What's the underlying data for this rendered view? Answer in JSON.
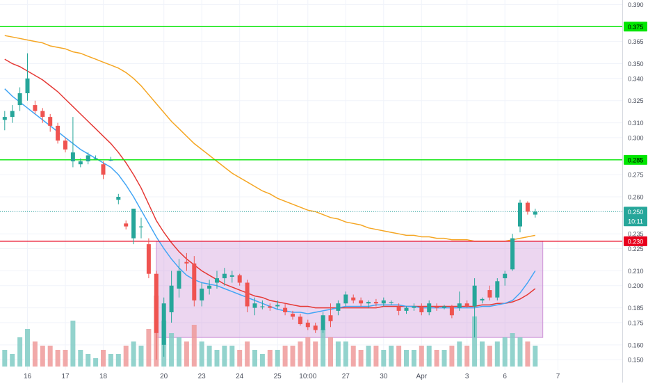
{
  "chart_data": {
    "type": "candlestick",
    "ylim": [
      0.143,
      0.393
    ],
    "y_ticks": [
      0.15,
      0.16,
      0.175,
      0.185,
      0.2,
      0.21,
      0.225,
      0.235,
      0.25,
      0.26,
      0.275,
      0.285,
      0.3,
      0.31,
      0.325,
      0.34,
      0.35,
      0.365,
      0.375,
      0.39
    ],
    "y_tick_labels": [
      "0.150",
      "0.160",
      "0.175",
      "0.185",
      "0.200",
      "0.210",
      "0.225",
      "0.235",
      "0.250",
      "0.260",
      "0.275",
      "0.285",
      "0.300",
      "0.310",
      "0.325",
      "0.340",
      "0.350",
      "0.365",
      "0.375",
      "0.390"
    ],
    "x_ticks": [
      {
        "label": "16",
        "index": 3
      },
      {
        "label": "17",
        "index": 8
      },
      {
        "label": "18",
        "index": 13
      },
      {
        "label": "20",
        "index": 21
      },
      {
        "label": "23",
        "index": 26
      },
      {
        "label": "24",
        "index": 31
      },
      {
        "label": "25",
        "index": 36
      },
      {
        "label": "10:00",
        "index": 40
      },
      {
        "label": "27",
        "index": 45
      },
      {
        "label": "30",
        "index": 50
      },
      {
        "label": "Apr",
        "index": 55
      },
      {
        "label": "3",
        "index": 61
      },
      {
        "label": "6",
        "index": 66
      },
      {
        "label": "7",
        "index": 73
      }
    ],
    "candles": [
      [
        0.312,
        0.318,
        0.305,
        0.314
      ],
      [
        0.314,
        0.322,
        0.31,
        0.318
      ],
      [
        0.322,
        0.334,
        0.318,
        0.33
      ],
      [
        0.33,
        0.357,
        0.325,
        0.34
      ],
      [
        0.322,
        0.325,
        0.316,
        0.318
      ],
      [
        0.318,
        0.32,
        0.31,
        0.314
      ],
      [
        0.314,
        0.316,
        0.304,
        0.308
      ],
      [
        0.308,
        0.31,
        0.296,
        0.298
      ],
      [
        0.298,
        0.3,
        0.29,
        0.292
      ],
      [
        0.284,
        0.314,
        0.28,
        0.29
      ],
      [
        0.282,
        0.286,
        0.28,
        0.284
      ],
      [
        0.284,
        0.29,
        0.282,
        0.288
      ],
      [
        0.286,
        0.288,
        0.285,
        0.286
      ],
      [
        0.282,
        0.284,
        0.272,
        0.275
      ],
      [
        0.285,
        0.287,
        0.284,
        0.285
      ],
      [
        0.258,
        0.262,
        0.255,
        0.26
      ],
      [
        0.242,
        0.244,
        0.238,
        0.24
      ],
      [
        0.232,
        0.252,
        0.228,
        0.252
      ],
      [
        0.24,
        0.246,
        0.232,
        0.24
      ],
      [
        0.228,
        0.232,
        0.205,
        0.208
      ],
      [
        0.208,
        0.21,
        0.15,
        0.168
      ],
      [
        0.16,
        0.192,
        0.152,
        0.188
      ],
      [
        0.182,
        0.21,
        0.175,
        0.2
      ],
      [
        0.198,
        0.218,
        0.192,
        0.21
      ],
      [
        0.216,
        0.222,
        0.21,
        0.215
      ],
      [
        0.215,
        0.22,
        0.186,
        0.19
      ],
      [
        0.19,
        0.202,
        0.186,
        0.198
      ],
      [
        0.198,
        0.204,
        0.194,
        0.2
      ],
      [
        0.202,
        0.21,
        0.198,
        0.205
      ],
      [
        0.205,
        0.212,
        0.2,
        0.208
      ],
      [
        0.206,
        0.21,
        0.202,
        0.207
      ],
      [
        0.207,
        0.208,
        0.2,
        0.202
      ],
      [
        0.202,
        0.204,
        0.182,
        0.186
      ],
      [
        0.185,
        0.192,
        0.18,
        0.188
      ],
      [
        0.186,
        0.19,
        0.184,
        0.186
      ],
      [
        0.186,
        0.188,
        0.183,
        0.185
      ],
      [
        0.186,
        0.19,
        0.184,
        0.187
      ],
      [
        0.185,
        0.188,
        0.18,
        0.182
      ],
      [
        0.181,
        0.183,
        0.177,
        0.179
      ],
      [
        0.179,
        0.181,
        0.173,
        0.174
      ],
      [
        0.175,
        0.177,
        0.17,
        0.172
      ],
      [
        0.173,
        0.175,
        0.168,
        0.17
      ],
      [
        0.17,
        0.182,
        0.168,
        0.18
      ],
      [
        0.18,
        0.188,
        0.172,
        0.176
      ],
      [
        0.183,
        0.19,
        0.18,
        0.188
      ],
      [
        0.188,
        0.196,
        0.186,
        0.194
      ],
      [
        0.192,
        0.194,
        0.188,
        0.19
      ],
      [
        0.19,
        0.192,
        0.186,
        0.188
      ],
      [
        0.188,
        0.19,
        0.185,
        0.189
      ],
      [
        0.189,
        0.191,
        0.186,
        0.188
      ],
      [
        0.188,
        0.192,
        0.186,
        0.19
      ],
      [
        0.189,
        0.19,
        0.187,
        0.189
      ],
      [
        0.186,
        0.188,
        0.18,
        0.183
      ],
      [
        0.183,
        0.186,
        0.181,
        0.185
      ],
      [
        0.185,
        0.188,
        0.183,
        0.186
      ],
      [
        0.186,
        0.188,
        0.18,
        0.182
      ],
      [
        0.182,
        0.19,
        0.18,
        0.188
      ],
      [
        0.186,
        0.188,
        0.183,
        0.185
      ],
      [
        0.185,
        0.187,
        0.184,
        0.186
      ],
      [
        0.186,
        0.187,
        0.178,
        0.18
      ],
      [
        0.185,
        0.196,
        0.183,
        0.188
      ],
      [
        0.188,
        0.19,
        0.185,
        0.186
      ],
      [
        0.186,
        0.205,
        0.165,
        0.2
      ],
      [
        0.19,
        0.192,
        0.188,
        0.191
      ],
      [
        0.197,
        0.2,
        0.19,
        0.192
      ],
      [
        0.192,
        0.205,
        0.19,
        0.203
      ],
      [
        0.205,
        0.21,
        0.2,
        0.208
      ],
      [
        0.211,
        0.235,
        0.21,
        0.232
      ],
      [
        0.24,
        0.258,
        0.236,
        0.256
      ],
      [
        0.256,
        0.257,
        0.248,
        0.25
      ],
      [
        0.248,
        0.252,
        0.246,
        0.25
      ]
    ],
    "volumes": [
      0.2,
      0.15,
      0.35,
      0.45,
      0.3,
      0.25,
      0.25,
      0.2,
      0.2,
      0.55,
      0.2,
      0.15,
      0.1,
      0.2,
      0.15,
      0.15,
      0.25,
      0.3,
      0.25,
      0.45,
      0.85,
      0.55,
      0.4,
      0.35,
      0.3,
      0.5,
      0.3,
      0.25,
      0.2,
      0.25,
      0.25,
      0.2,
      0.3,
      0.2,
      0.15,
      0.2,
      0.2,
      0.25,
      0.25,
      0.3,
      0.35,
      0.3,
      0.45,
      0.35,
      0.3,
      0.3,
      0.25,
      0.2,
      0.25,
      0.25,
      0.2,
      0.25,
      0.25,
      0.2,
      0.2,
      0.25,
      0.25,
      0.2,
      0.2,
      0.25,
      0.3,
      0.25,
      0.6,
      0.3,
      0.25,
      0.3,
      0.35,
      0.4,
      0.35,
      0.3,
      0.25
    ],
    "moving_averages": [
      {
        "color": "#f5a623",
        "values": [
          0.369,
          0.368,
          0.367,
          0.366,
          0.365,
          0.364,
          0.362,
          0.361,
          0.36,
          0.358,
          0.357,
          0.355,
          0.353,
          0.351,
          0.349,
          0.347,
          0.344,
          0.34,
          0.335,
          0.329,
          0.323,
          0.317,
          0.311,
          0.306,
          0.301,
          0.296,
          0.292,
          0.288,
          0.284,
          0.28,
          0.276,
          0.273,
          0.27,
          0.267,
          0.264,
          0.262,
          0.259,
          0.257,
          0.255,
          0.253,
          0.251,
          0.25,
          0.248,
          0.246,
          0.245,
          0.243,
          0.242,
          0.241,
          0.239,
          0.238,
          0.237,
          0.236,
          0.235,
          0.234,
          0.234,
          0.233,
          0.233,
          0.232,
          0.232,
          0.231,
          0.231,
          0.231,
          0.23,
          0.23,
          0.23,
          0.23,
          0.23,
          0.231,
          0.232,
          0.233,
          0.234
        ]
      },
      {
        "color": "#e53935",
        "values": [
          0.353,
          0.35,
          0.348,
          0.345,
          0.342,
          0.339,
          0.335,
          0.331,
          0.326,
          0.321,
          0.316,
          0.311,
          0.306,
          0.301,
          0.296,
          0.29,
          0.283,
          0.275,
          0.266,
          0.255,
          0.244,
          0.236,
          0.229,
          0.223,
          0.218,
          0.214,
          0.21,
          0.207,
          0.204,
          0.201,
          0.199,
          0.197,
          0.195,
          0.193,
          0.192,
          0.19,
          0.189,
          0.188,
          0.187,
          0.186,
          0.186,
          0.185,
          0.185,
          0.185,
          0.185,
          0.185,
          0.185,
          0.185,
          0.185,
          0.185,
          0.186,
          0.186,
          0.186,
          0.186,
          0.186,
          0.186,
          0.186,
          0.186,
          0.186,
          0.186,
          0.186,
          0.186,
          0.186,
          0.187,
          0.187,
          0.188,
          0.188,
          0.189,
          0.191,
          0.194,
          0.198
        ]
      },
      {
        "color": "#42a5f5",
        "values": [
          0.333,
          0.328,
          0.324,
          0.32,
          0.316,
          0.312,
          0.308,
          0.304,
          0.3,
          0.296,
          0.292,
          0.289,
          0.286,
          0.283,
          0.28,
          0.275,
          0.268,
          0.26,
          0.251,
          0.242,
          0.233,
          0.225,
          0.218,
          0.212,
          0.207,
          0.204,
          0.202,
          0.201,
          0.2,
          0.198,
          0.196,
          0.194,
          0.192,
          0.19,
          0.188,
          0.186,
          0.184,
          0.183,
          0.182,
          0.182,
          0.181,
          0.182,
          0.183,
          0.184,
          0.185,
          0.186,
          0.186,
          0.186,
          0.186,
          0.187,
          0.187,
          0.187,
          0.187,
          0.186,
          0.186,
          0.185,
          0.185,
          0.185,
          0.185,
          0.185,
          0.185,
          0.185,
          0.185,
          0.186,
          0.186,
          0.187,
          0.188,
          0.19,
          0.195,
          0.202,
          0.21
        ]
      }
    ],
    "horizontal_lines": [
      {
        "value": 0.375,
        "color": "#00e600",
        "label": "0.375"
      },
      {
        "value": 0.285,
        "color": "#00e600",
        "label": "0.285"
      },
      {
        "value": 0.23,
        "color": "#e8001c",
        "label": "0.230"
      }
    ],
    "current_price": {
      "value": 0.25,
      "label": "0.250",
      "countdown": "10:11",
      "color": "#26a69a"
    },
    "consolidation_box": {
      "y_range": [
        0.165,
        0.23
      ],
      "index_range": [
        20,
        71
      ],
      "color": "#ce93d8"
    },
    "colors": {
      "up": "#26a69a",
      "down": "#ef5350",
      "volume_up": "#80cbc4",
      "volume_down": "#ef9a9a"
    }
  }
}
